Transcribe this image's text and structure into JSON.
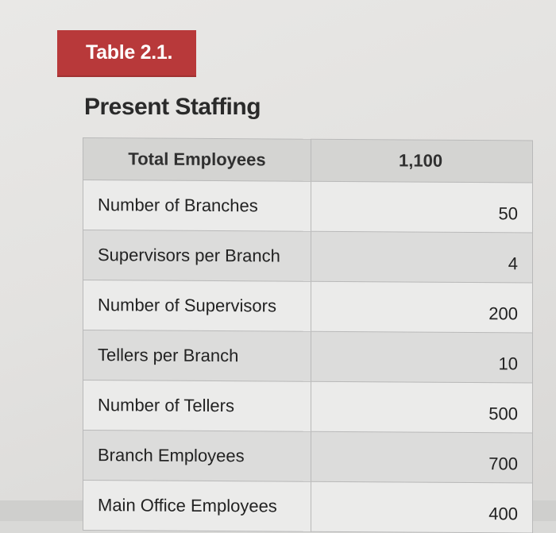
{
  "header": {
    "table_tag": "Table 2.1.",
    "title": "Present Staffing"
  },
  "table": {
    "header": {
      "label": "Total Employees",
      "value": "1,100"
    },
    "rows": [
      {
        "label": "Number of Branches",
        "value": "50"
      },
      {
        "label": "Supervisors per Branch",
        "value": "4"
      },
      {
        "label": "Number of Supervisors",
        "value": "200"
      },
      {
        "label": "Tellers per Branch",
        "value": "10"
      },
      {
        "label": "Number of Tellers",
        "value": "500"
      },
      {
        "label": "Branch Employees",
        "value": "700"
      },
      {
        "label": "Main Office Employees",
        "value": "400"
      }
    ]
  },
  "colors": {
    "tag_background": "#b8393a",
    "title_text": "#2a2a2a",
    "header_row": "#d4d4d2",
    "row_light": "#ebebea",
    "row_dark": "#dcdcdb"
  }
}
